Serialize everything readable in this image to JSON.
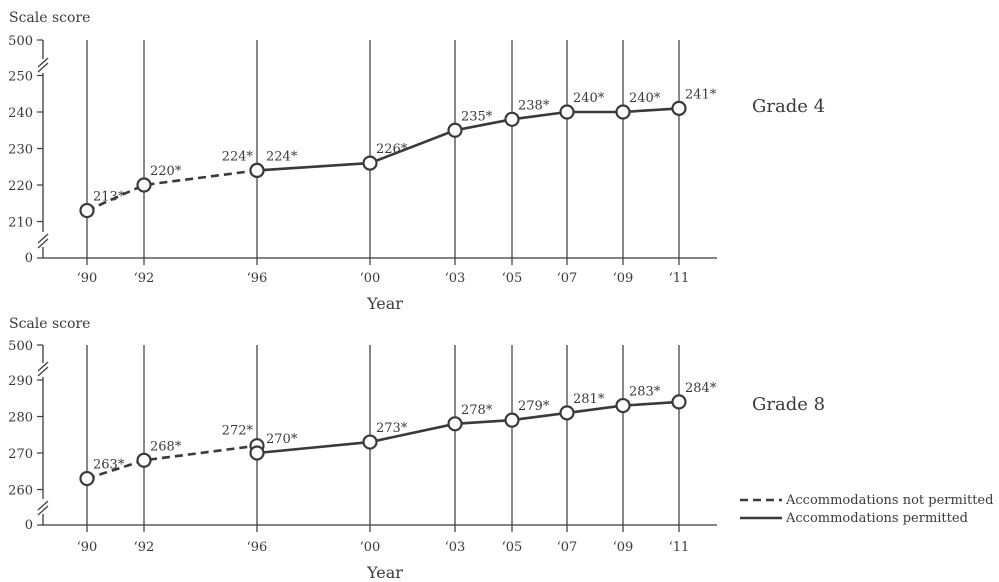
{
  "chart_data": [
    {
      "type": "line",
      "panel_label": "Grade 4",
      "ylabel": "Scale score",
      "xlabel": "Year",
      "x_tick_labels": [
        "‘90",
        "‘92",
        "‘96",
        "‘00",
        "‘03",
        "‘05",
        "‘07",
        "‘09",
        "‘11"
      ],
      "y_ticks": [
        210,
        220,
        230,
        240,
        250
      ],
      "y_axis_break_top": 500,
      "y_axis_break_bottom": 0,
      "ylim": [
        205,
        252
      ],
      "series": [
        {
          "name": "Accommodations not permitted",
          "style": "dashed",
          "x": [
            1990,
            1992,
            1996
          ],
          "y": [
            213,
            220,
            224
          ],
          "labels": [
            "213*",
            "220*",
            "224*"
          ]
        },
        {
          "name": "Accommodations permitted",
          "style": "solid",
          "x": [
            1996,
            2000,
            2003,
            2005,
            2007,
            2009,
            2011
          ],
          "y": [
            224,
            226,
            235,
            238,
            240,
            240,
            241
          ],
          "labels": [
            "224*",
            "226*",
            "235*",
            "238*",
            "240*",
            "240*",
            "241*"
          ]
        }
      ]
    },
    {
      "type": "line",
      "panel_label": "Grade 8",
      "ylabel": "Scale score",
      "xlabel": "Year",
      "x_tick_labels": [
        "‘90",
        "‘92",
        "‘96",
        "‘00",
        "‘03",
        "‘05",
        "‘07",
        "‘09",
        "‘11"
      ],
      "y_ticks": [
        260,
        270,
        280,
        290
      ],
      "y_axis_break_top": 500,
      "y_axis_break_bottom": 0,
      "ylim": [
        255,
        292
      ],
      "series": [
        {
          "name": "Accommodations not permitted",
          "style": "dashed",
          "x": [
            1990,
            1992,
            1996
          ],
          "y": [
            263,
            268,
            272
          ],
          "labels": [
            "263*",
            "268*",
            "272*"
          ]
        },
        {
          "name": "Accommodations permitted",
          "style": "solid",
          "x": [
            1996,
            2000,
            2003,
            2005,
            2007,
            2009,
            2011
          ],
          "y": [
            270,
            273,
            278,
            279,
            281,
            283,
            284
          ],
          "labels": [
            "270*",
            "273*",
            "278*",
            "279*",
            "281*",
            "283*",
            "284*"
          ]
        }
      ]
    }
  ],
  "legend": {
    "items": [
      {
        "label": "Accommodations not permitted",
        "style": "dashed"
      },
      {
        "label": "Accommodations permitted",
        "style": "solid"
      }
    ]
  },
  "colors": {
    "ink": "#3a3a3a",
    "marker_fill": "#ffffff"
  }
}
